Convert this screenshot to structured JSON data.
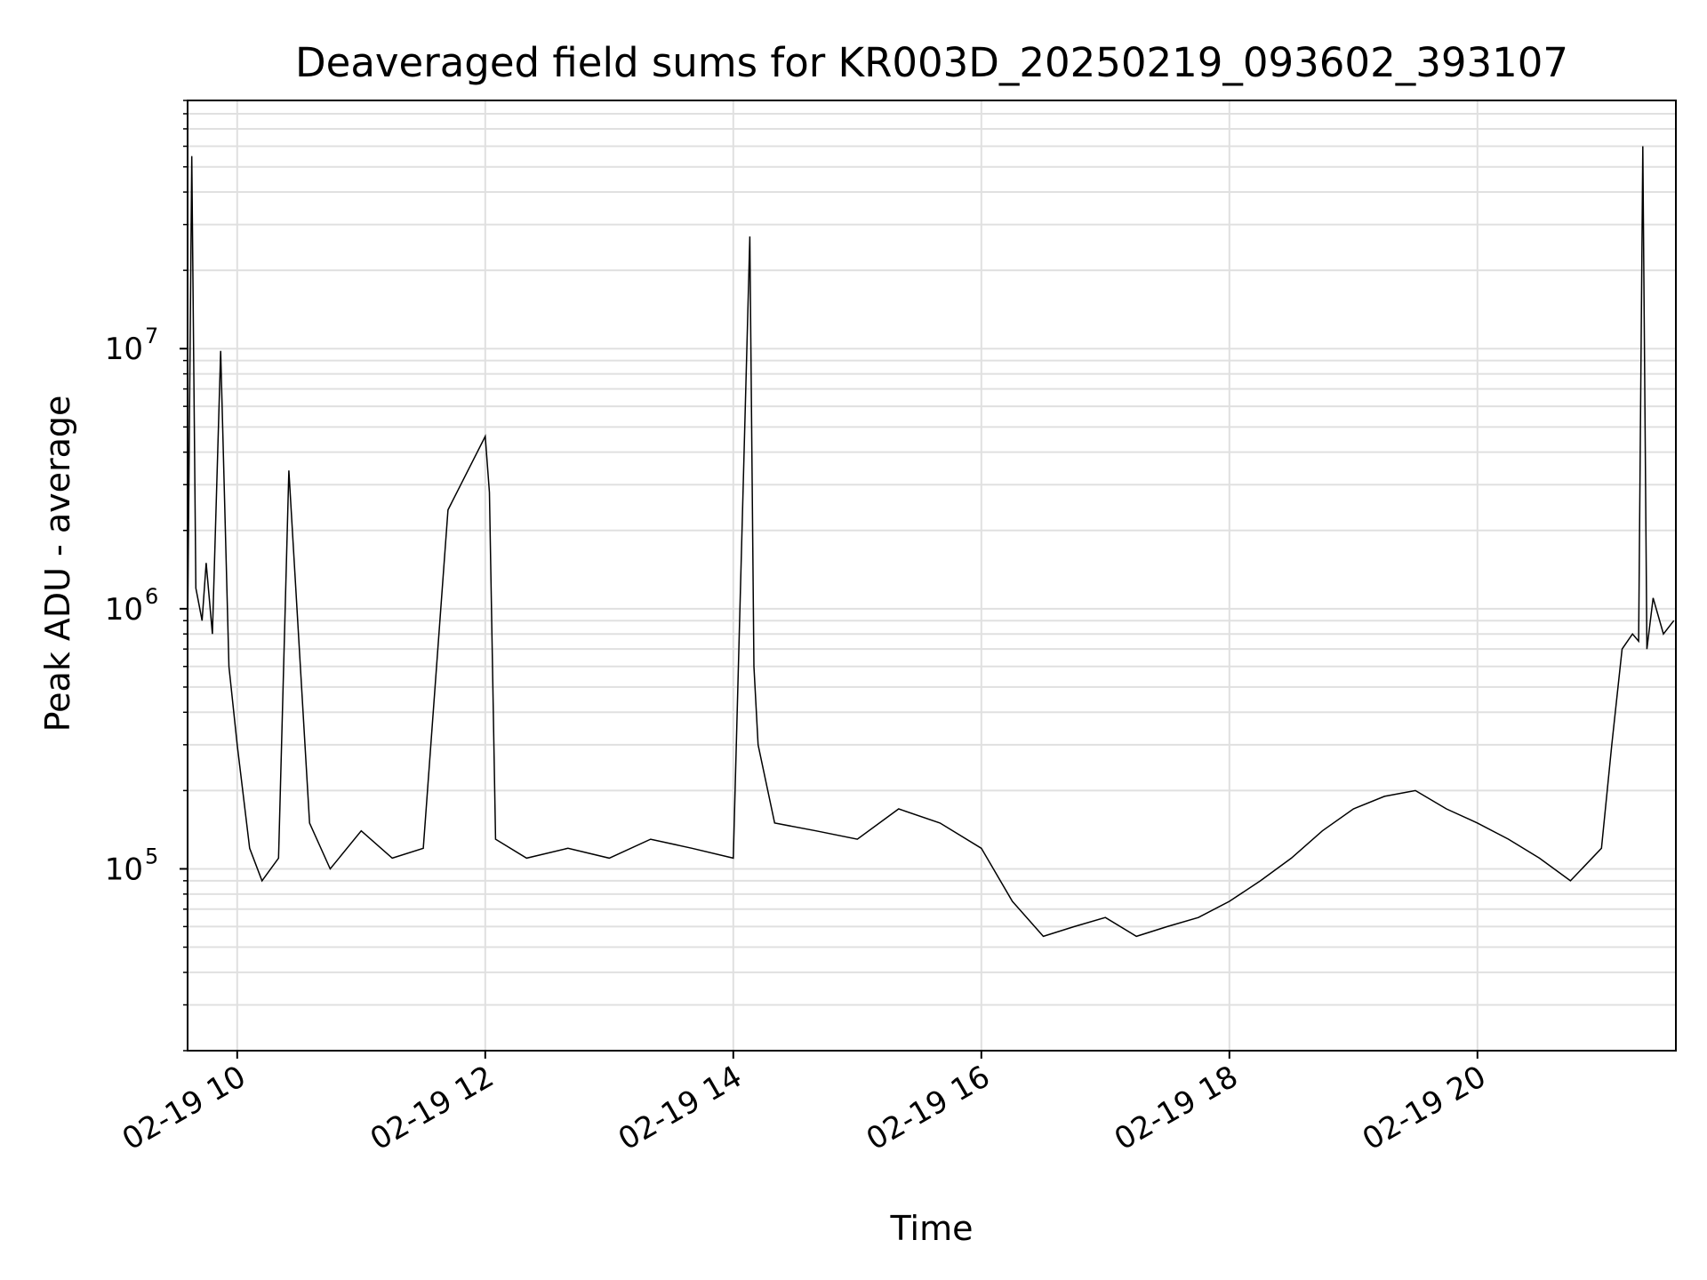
{
  "chart_data": {
    "type": "line",
    "title": "Deaveraged field sums for KR003D_20250219_093602_393107",
    "xlabel": "Time",
    "ylabel": "Peak ADU - average",
    "yscale": "log",
    "grid": true,
    "xlim": [
      "02-19 09:36",
      "02-19 21:36"
    ],
    "ylim": [
      20000,
      90000000
    ],
    "x_ticks": [
      {
        "value": "02-19 10:00",
        "label": "02-19 10"
      },
      {
        "value": "02-19 12:00",
        "label": "02-19 12"
      },
      {
        "value": "02-19 14:00",
        "label": "02-19 14"
      },
      {
        "value": "02-19 16:00",
        "label": "02-19 16"
      },
      {
        "value": "02-19 18:00",
        "label": "02-19 18"
      },
      {
        "value": "02-19 20:00",
        "label": "02-19 20"
      }
    ],
    "y_ticks": [
      {
        "value": 100000,
        "base": "10",
        "exp": "5"
      },
      {
        "value": 1000000,
        "base": "10",
        "exp": "6"
      },
      {
        "value": 10000000,
        "base": "10",
        "exp": "7"
      }
    ],
    "line_color": "#000000",
    "grid_color": "#e0e0e0",
    "series": [
      {
        "x": [
          "02-19 09:36",
          "02-19 09:38",
          "02-19 09:40",
          "02-19 09:43",
          "02-19 09:45",
          "02-19 09:48",
          "02-19 09:52",
          "02-19 09:56",
          "02-19 10:00",
          "02-19 10:06",
          "02-19 10:12",
          "02-19 10:20",
          "02-19 10:25",
          "02-19 10:35",
          "02-19 10:45",
          "02-19 11:00",
          "02-19 11:15",
          "02-19 11:30",
          "02-19 11:42",
          "02-19 12:00",
          "02-19 12:02",
          "02-19 12:05",
          "02-19 12:20",
          "02-19 12:40",
          "02-19 13:00",
          "02-19 13:20",
          "02-19 13:40",
          "02-19 14:00",
          "02-19 14:08",
          "02-19 14:10",
          "02-19 14:12",
          "02-19 14:20",
          "02-19 14:40",
          "02-19 15:00",
          "02-19 15:20",
          "02-19 15:40",
          "02-19 16:00",
          "02-19 16:15",
          "02-19 16:30",
          "02-19 16:45",
          "02-19 17:00",
          "02-19 17:15",
          "02-19 17:30",
          "02-19 17:45",
          "02-19 18:00",
          "02-19 18:15",
          "02-19 18:30",
          "02-19 18:45",
          "02-19 19:00",
          "02-19 19:15",
          "02-19 19:30",
          "02-19 19:45",
          "02-19 20:00",
          "02-19 20:15",
          "02-19 20:30",
          "02-19 20:45",
          "02-19 21:00",
          "02-19 21:05",
          "02-19 21:10",
          "02-19 21:15",
          "02-19 21:18",
          "02-19 21:20",
          "02-19 21:22",
          "02-19 21:25",
          "02-19 21:30",
          "02-19 21:35"
        ],
        "y": [
          800000,
          55000000,
          1200000,
          900000,
          1500000,
          800000,
          9800000,
          600000,
          300000,
          120000,
          90000,
          110000,
          3400000,
          150000,
          100000,
          140000,
          110000,
          120000,
          2400000,
          4600000,
          2800000,
          130000,
          110000,
          120000,
          110000,
          130000,
          120000,
          110000,
          27000000,
          600000,
          300000,
          150000,
          140000,
          130000,
          170000,
          150000,
          120000,
          75000,
          55000,
          60000,
          65000,
          55000,
          60000,
          65000,
          75000,
          90000,
          110000,
          140000,
          170000,
          190000,
          200000,
          170000,
          150000,
          130000,
          110000,
          90000,
          120000,
          300000,
          700000,
          800000,
          750000,
          60000000,
          700000,
          1100000,
          800000,
          900000
        ]
      }
    ]
  }
}
